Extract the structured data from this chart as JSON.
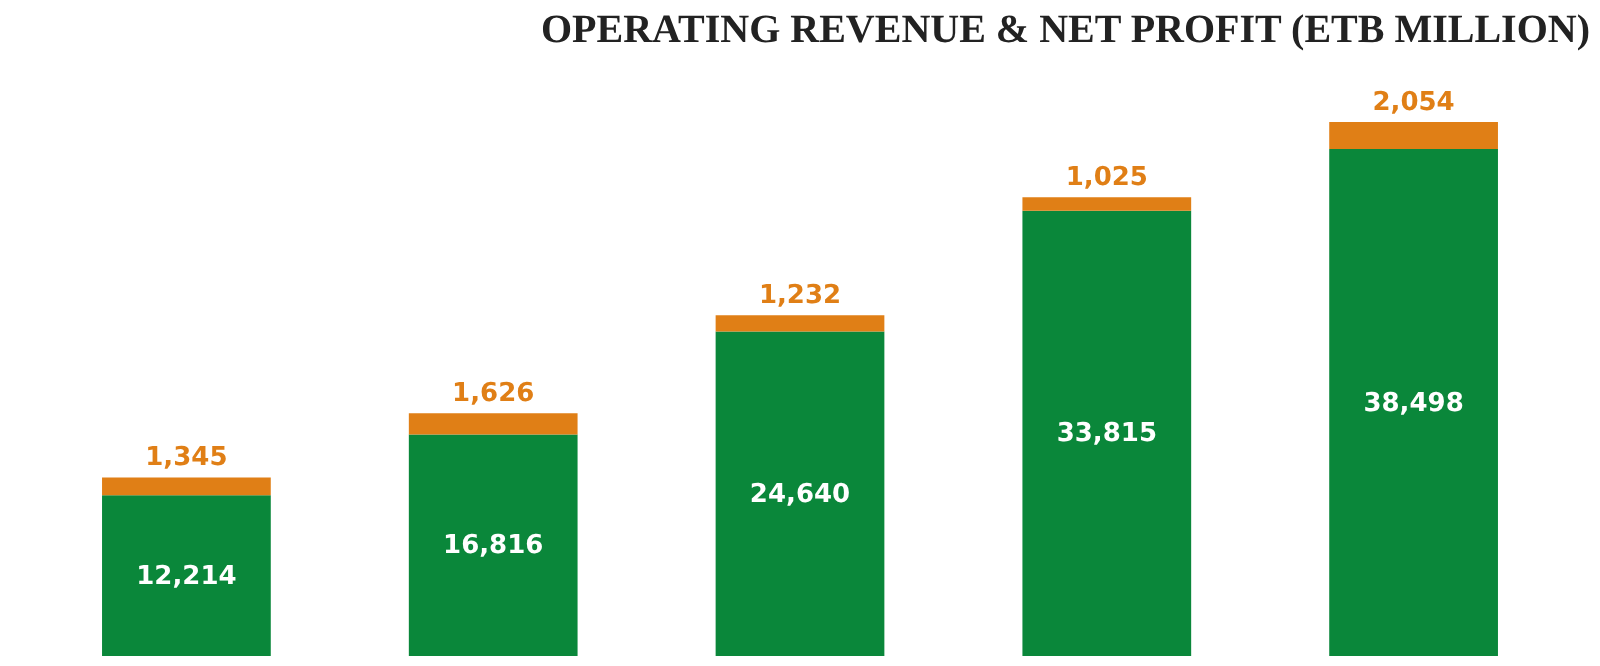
{
  "chart_data": {
    "type": "bar",
    "title": "OPERATING REVENUE & NET PROFIT (ETB MILLION)",
    "categories": [
      null,
      null,
      null,
      null,
      null
    ],
    "stacked": true,
    "tick_labels": false,
    "series": [
      {
        "color": "#0a873a",
        "values": [
          12214,
          16816,
          24640,
          33815,
          38498
        ],
        "value_labels": [
          "12,214",
          "16,816",
          "24,640",
          "33,815",
          "38,498"
        ]
      },
      {
        "color": "#e07f16",
        "values": [
          1345,
          1626,
          1232,
          1025,
          2054
        ],
        "value_labels": [
          "1,345",
          "1,626",
          "1,232",
          "1,025",
          "2,054"
        ]
      }
    ]
  }
}
